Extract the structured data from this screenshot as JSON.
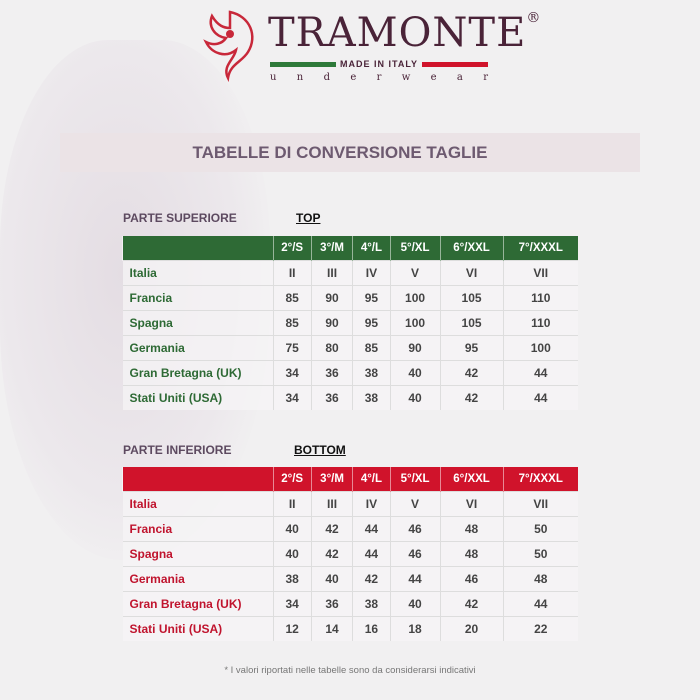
{
  "brand": {
    "name": "TRAMONTE",
    "registered": "®",
    "tagline": "MADE IN ITALY",
    "subline": "underwear",
    "colors": {
      "green": "#2e6a35",
      "red": "#d0132b",
      "logo": "#4a2338"
    }
  },
  "title": "TABELLE DI CONVERSIONE TAGLIE",
  "top": {
    "label": "PARTE SUPERIORE",
    "tag": "TOP",
    "headers": [
      "",
      "2°/S",
      "3°/M",
      "4°/L",
      "5°/XL",
      "6°/XXL",
      "7°/XXXL"
    ],
    "rows": [
      [
        "Italia",
        "II",
        "III",
        "IV",
        "V",
        "VI",
        "VII"
      ],
      [
        "Francia",
        "85",
        "90",
        "95",
        "100",
        "105",
        "110"
      ],
      [
        "Spagna",
        "85",
        "90",
        "95",
        "100",
        "105",
        "110"
      ],
      [
        "Germania",
        "75",
        "80",
        "85",
        "90",
        "95",
        "100"
      ],
      [
        "Gran Bretagna (UK)",
        "34",
        "36",
        "38",
        "40",
        "42",
        "44"
      ],
      [
        "Stati Uniti (USA)",
        "34",
        "36",
        "38",
        "40",
        "42",
        "44"
      ]
    ]
  },
  "bottom": {
    "label": "PARTE INFERIORE",
    "tag": "BOTTOM",
    "headers": [
      "",
      "2°/S",
      "3°/M",
      "4°/L",
      "5°/XL",
      "6°/XXL",
      "7°/XXXL"
    ],
    "rows": [
      [
        "Italia",
        "II",
        "III",
        "IV",
        "V",
        "VI",
        "VII"
      ],
      [
        "Francia",
        "40",
        "42",
        "44",
        "46",
        "48",
        "50"
      ],
      [
        "Spagna",
        "40",
        "42",
        "44",
        "46",
        "48",
        "50"
      ],
      [
        "Germania",
        "38",
        "40",
        "42",
        "44",
        "46",
        "48"
      ],
      [
        "Gran Bretagna (UK)",
        "34",
        "36",
        "38",
        "40",
        "42",
        "44"
      ],
      [
        "Stati Uniti (USA)",
        "12",
        "14",
        "16",
        "18",
        "20",
        "22"
      ]
    ]
  },
  "note": "* I valori riportati nelle tabelle sono da considerarsi indicativi"
}
